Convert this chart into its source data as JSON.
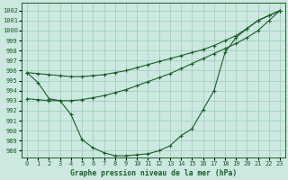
{
  "title": "Graphe pression niveau de la mer (hPa)",
  "bg_color": "#cce8e0",
  "grid_color": "#99ccbb",
  "line_color": "#1a5e28",
  "x": [
    0,
    1,
    2,
    3,
    4,
    5,
    6,
    7,
    8,
    9,
    10,
    11,
    12,
    13,
    14,
    15,
    16,
    17,
    18,
    19,
    20,
    21,
    22,
    23
  ],
  "line1": [
    995.8,
    994.8,
    993.2,
    993.0,
    991.6,
    989.1,
    988.3,
    987.8,
    987.5,
    987.5,
    987.6,
    987.7,
    988.0,
    988.5,
    989.5,
    990.2,
    992.1,
    994.0,
    997.8,
    999.3,
    1000.2,
    1001.0,
    1001.5,
    1002.0
  ],
  "line2": [
    995.8,
    995.7,
    995.6,
    995.5,
    995.4,
    995.4,
    995.5,
    995.6,
    995.8,
    996.0,
    996.3,
    996.6,
    996.9,
    997.2,
    997.5,
    997.8,
    998.1,
    998.5,
    999.0,
    999.5,
    1000.2,
    1001.0,
    1001.5,
    1002.0
  ],
  "line3": [
    993.2,
    993.1,
    993.0,
    993.0,
    993.0,
    993.1,
    993.3,
    993.5,
    993.8,
    994.1,
    994.5,
    994.9,
    995.3,
    995.7,
    996.2,
    996.7,
    997.2,
    997.7,
    998.2,
    998.7,
    999.3,
    1000.0,
    1001.0,
    1002.0
  ],
  "ylim": [
    987.3,
    1002.8
  ],
  "yticks": [
    988,
    989,
    990,
    991,
    992,
    993,
    994,
    995,
    996,
    997,
    998,
    999,
    1000,
    1001,
    1002
  ],
  "xlim": [
    -0.5,
    23.5
  ],
  "xticks": [
    0,
    1,
    2,
    3,
    4,
    5,
    6,
    7,
    8,
    9,
    10,
    11,
    12,
    13,
    14,
    15,
    16,
    17,
    18,
    19,
    20,
    21,
    22,
    23
  ]
}
